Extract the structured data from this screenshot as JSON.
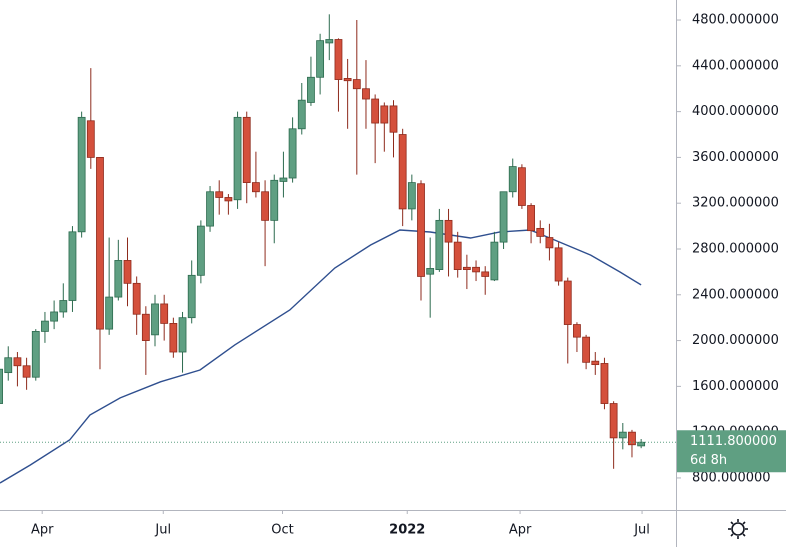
{
  "chart_data": {
    "type": "candlestick",
    "open": [
      1450,
      1720,
      1850,
      1780,
      1680,
      2080,
      2170,
      2250,
      2350,
      2950,
      3920,
      3600,
      2100,
      2380,
      2700,
      2500,
      2230,
      2050,
      2320,
      2150,
      1900,
      2200,
      2570,
      3000,
      3300,
      3250,
      3230,
      3950,
      3380,
      3300,
      3050,
      3390,
      3420,
      3850,
      4080,
      4300,
      4600,
      4630,
      4290,
      4280,
      4200,
      4110,
      4050,
      4050,
      3800,
      3150,
      3370,
      2580,
      2620,
      3050,
      2860,
      2640,
      2640,
      2600,
      2530,
      2860,
      3300,
      3510,
      3180,
      2980,
      2900,
      2810,
      2520,
      2140,
      2030,
      1820,
      1800,
      1450,
      1150,
      1200,
      1080
    ],
    "high": [
      1800,
      1950,
      1900,
      1850,
      2100,
      2250,
      2350,
      2500,
      3000,
      4000,
      4380,
      3600,
      2900,
      2880,
      2900,
      2560,
      2300,
      2400,
      2400,
      2200,
      2250,
      2700,
      3050,
      3350,
      3400,
      3280,
      4000,
      4000,
      3650,
      3400,
      3450,
      3650,
      3950,
      4250,
      4480,
      4680,
      4850,
      4640,
      4460,
      4800,
      4450,
      4150,
      4080,
      4100,
      3850,
      3450,
      3400,
      2900,
      3150,
      3150,
      2950,
      2750,
      2700,
      2650,
      2950,
      3300,
      3590,
      3540,
      3200,
      3050,
      3020,
      2860,
      2550,
      2160,
      2050,
      1900,
      1850,
      1470,
      1280,
      1220,
      1140
    ],
    "low": [
      1400,
      1650,
      1600,
      1570,
      1650,
      1980,
      2100,
      2200,
      2250,
      2900,
      3500,
      1750,
      2050,
      2350,
      2300,
      2050,
      1700,
      1950,
      2000,
      1850,
      1720,
      2150,
      2500,
      2950,
      3100,
      3100,
      3150,
      3200,
      3250,
      2650,
      2850,
      3250,
      3380,
      3800,
      4050,
      4150,
      4450,
      4000,
      3850,
      3450,
      3850,
      3550,
      3650,
      3600,
      3000,
      3050,
      2350,
      2200,
      2600,
      2560,
      2550,
      2450,
      2520,
      2400,
      2520,
      2800,
      3250,
      3150,
      2850,
      2850,
      2700,
      2480,
      1800,
      1900,
      1750,
      1700,
      1400,
      880,
      1050,
      980,
      1060
    ],
    "close": [
      1750,
      1850,
      1780,
      1680,
      2080,
      2170,
      2250,
      2350,
      2950,
      3950,
      3600,
      2100,
      2380,
      2700,
      2500,
      2230,
      2000,
      2320,
      2150,
      1900,
      2200,
      2570,
      3000,
      3300,
      3250,
      3220,
      3950,
      3380,
      3300,
      3050,
      3400,
      3420,
      3850,
      4100,
      4300,
      4620,
      4630,
      4280,
      4270,
      4200,
      4110,
      3900,
      3900,
      3820,
      3150,
      3380,
      2560,
      2630,
      3050,
      2860,
      2620,
      2620,
      2600,
      2560,
      2860,
      3300,
      3520,
      3180,
      2960,
      2910,
      2810,
      2520,
      2140,
      2030,
      1810,
      1790,
      1450,
      1150,
      1200,
      1090,
      1111.8
    ],
    "up_color": "#5f9f82",
    "up_border": "#2c6a4e",
    "down_color": "#d4503c",
    "down_border": "#8e2a1c",
    "moving_average": {
      "color": "#2f4f8f",
      "x": [
        0.1,
        3.4,
        7.7,
        9.9,
        13.2,
        17.6,
        21.9,
        25.7,
        31.7,
        36.6,
        40.5,
        43.7,
        47,
        51.4,
        54.6,
        57.9,
        60.6,
        64.5,
        67.7,
        70
      ],
      "values": [
        756,
        913,
        1132,
        1350,
        1499,
        1640,
        1743,
        1962,
        2267,
        2634,
        2835,
        2966,
        2948,
        2896,
        2948,
        2966,
        2878,
        2747,
        2599,
        2486
      ]
    },
    "xlim": [
      0.1,
      73.8
    ],
    "xticks": [
      {
        "value": 4.7,
        "label": "Apr"
      },
      {
        "value": 17.9,
        "label": "Jul"
      },
      {
        "value": 30.9,
        "label": "Oct"
      },
      {
        "value": 44.5,
        "label": "2022"
      },
      {
        "value": 56.8,
        "label": "Apr"
      },
      {
        "value": 70.1,
        "label": "Jul"
      }
    ],
    "ylim": [
      520,
      4975
    ],
    "yticks": [
      {
        "value": 800,
        "label": "800.000000"
      },
      {
        "value": 1200,
        "label": "1200.000000"
      },
      {
        "value": 1600,
        "label": "1600.000000"
      },
      {
        "value": 2000,
        "label": "2000.000000"
      },
      {
        "value": 2400,
        "label": "2400.000000"
      },
      {
        "value": 2800,
        "label": "2800.000000"
      },
      {
        "value": 3200,
        "label": "3200.000000"
      },
      {
        "value": 3600,
        "label": "3600.000000"
      },
      {
        "value": 4000,
        "label": "4000.000000"
      },
      {
        "value": 4400,
        "label": "4400.000000"
      },
      {
        "value": 4800,
        "label": "4800.000000"
      }
    ],
    "last_price": {
      "value": 1111.8,
      "label": "1111.800000",
      "color": "#5f9f82"
    },
    "countdown": "6d 8h"
  }
}
